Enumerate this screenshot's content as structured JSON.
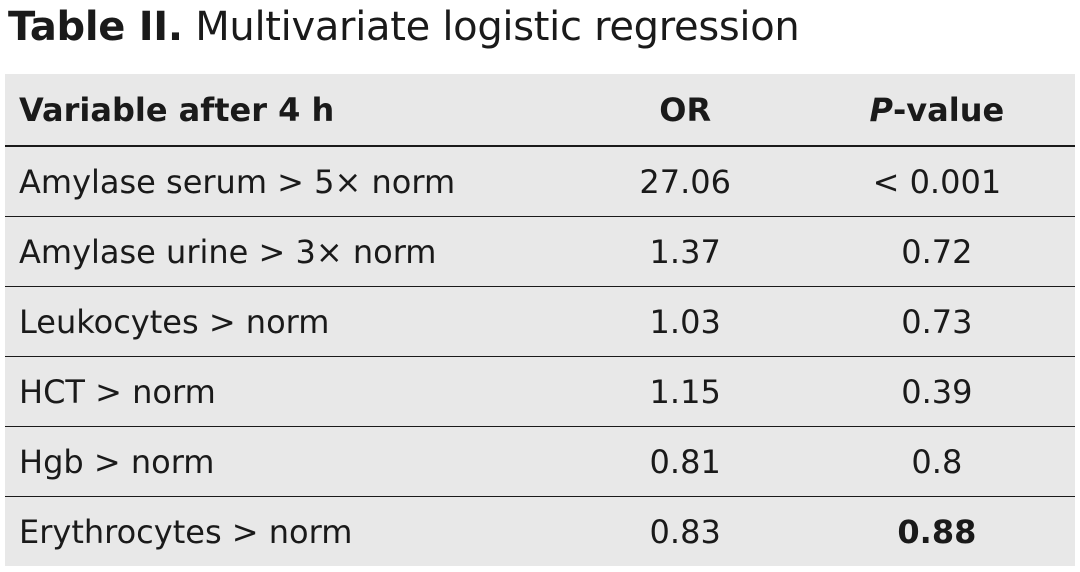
{
  "caption": {
    "label": "Table II.",
    "title": "Multivariate logistic regression"
  },
  "table": {
    "headers": {
      "variable": "Variable after 4 h",
      "or": "OR",
      "p_italic": "P",
      "p_rest": "-value"
    },
    "rows": [
      {
        "variable": "Amylase serum > 5× norm",
        "or": "27.06",
        "p": "< 0.001"
      },
      {
        "variable": "Amylase urine > 3× norm",
        "or": "1.37",
        "p": "0.72"
      },
      {
        "variable": "Leukocytes > norm",
        "or": "1.03",
        "p": "0.73"
      },
      {
        "variable": "HCT > norm",
        "or": "1.15",
        "p": "0.39"
      },
      {
        "variable": "Hgb > norm",
        "or": "0.81",
        "p": "0.8"
      },
      {
        "variable": "Erythrocytes > norm",
        "or": "0.83",
        "p": "0.88"
      }
    ]
  }
}
